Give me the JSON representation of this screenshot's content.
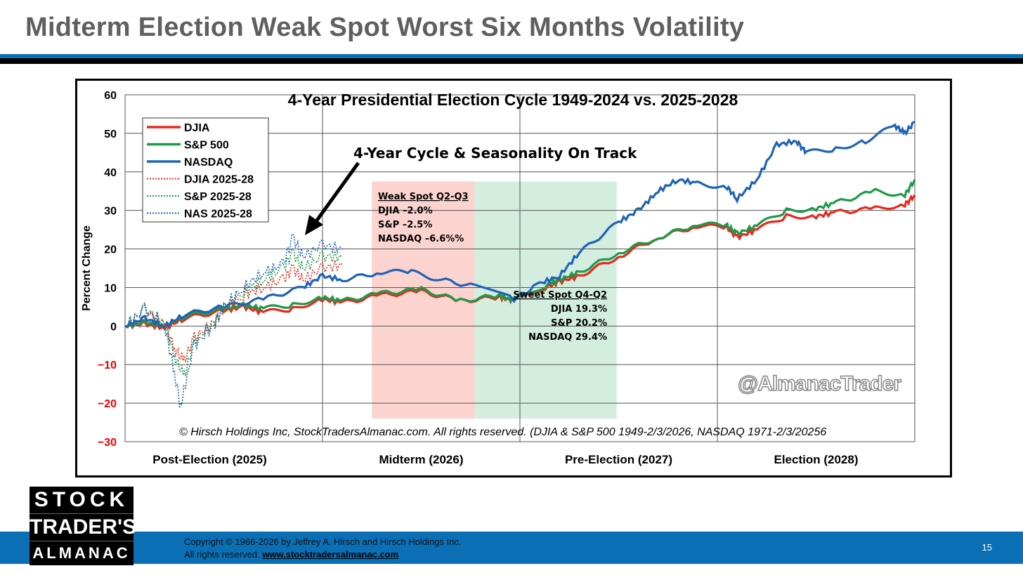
{
  "slide": {
    "title": "Midterm Election Weak Spot Worst Six Months Volatility",
    "page": "15",
    "copyright": "Copyright © 1966-2026 by Jeffrey A. Hirsch and Hirsch Holdings Inc.",
    "rights": "All rights reserved.",
    "url": "www.stocktradersalmanac.com",
    "logo": [
      "STOCK",
      "TRADER'S",
      "ALMANAC"
    ]
  },
  "chart_data": {
    "type": "line",
    "title": "4-Year Presidential Election Cycle 1949-2024 vs. 2025-2028",
    "ylabel": "Percent Change",
    "ylim": [
      -30,
      60
    ],
    "yticks": [
      "60",
      "50",
      "40",
      "30",
      "20",
      "10",
      "0",
      "−10",
      "−20",
      "−30"
    ],
    "xlim": [
      0,
      4
    ],
    "categories": [
      "Post-Election (2025)",
      "Midterm (2026)",
      "Pre-Election (2027)",
      "Election (2028)"
    ],
    "annotation": "4-Year Cycle & Seasonality On Track",
    "weak": {
      "title": "Weak Spot Q2-Q3",
      "lines": [
        "DJIA –2.0%",
        "S&P –2.5%",
        "NASDAQ –6.6%%"
      ],
      "x": [
        1.25,
        1.77
      ]
    },
    "sweet": {
      "title": "Sweet Spot Q4-Q2",
      "lines": [
        "DJIA 19.3%",
        "S&P 20.2%",
        "NASDAQ 29.4%"
      ],
      "x": [
        1.77,
        2.49
      ]
    },
    "watermark": "@AlmanacTrader",
    "source": "© Hirsch Holdings Inc, StockTradersAlmanac.com. All rights reserved. (DJIA & S&P 500 1949-2/3/2026, NASDAQ 1971-2/3/20256",
    "series": [
      {
        "name": "DJIA",
        "color": "#e8281c",
        "dotted": false,
        "x": [
          0,
          0.1,
          0.2,
          0.3,
          0.5,
          0.6,
          0.7,
          0.85,
          1,
          1.1,
          1.3,
          1.5,
          1.7,
          1.9,
          1.97,
          2.15,
          2.2,
          2.3,
          2.5,
          2.7,
          2.9,
          3.05,
          3.1,
          3.2,
          3.35,
          3.5,
          3.6,
          3.8,
          3.95,
          4
        ],
        "y": [
          0,
          0.5,
          -0.5,
          2,
          4,
          5,
          3.5,
          4.5,
          7,
          6,
          8,
          9,
          6.5,
          7.5,
          6.5,
          10.5,
          11.5,
          13,
          18,
          23,
          26,
          25.5,
          23,
          25,
          28.5,
          28.5,
          29.5,
          30.5,
          31.5,
          34
        ]
      },
      {
        "name": "S&P 500",
        "color": "#1e9a4a",
        "dotted": false,
        "x": [
          0,
          0.1,
          0.2,
          0.3,
          0.5,
          0.6,
          0.7,
          0.85,
          1,
          1.1,
          1.3,
          1.5,
          1.7,
          1.9,
          1.97,
          2.15,
          2.2,
          2.3,
          2.5,
          2.7,
          2.9,
          3.05,
          3.1,
          3.2,
          3.35,
          3.5,
          3.6,
          3.8,
          3.95,
          4
        ],
        "y": [
          0,
          1,
          0,
          2.5,
          4.5,
          5.5,
          4.5,
          5.5,
          7.5,
          6.5,
          8.5,
          9.5,
          6.5,
          8,
          6.5,
          11,
          12,
          14,
          19,
          23,
          26.5,
          26,
          24,
          26,
          30,
          30.5,
          32,
          35,
          34,
          38
        ]
      },
      {
        "name": "NASDAQ",
        "color": "#1f63b8",
        "dotted": false,
        "x": [
          0,
          0.1,
          0.2,
          0.3,
          0.5,
          0.7,
          0.9,
          1,
          1.1,
          1.3,
          1.45,
          1.6,
          1.8,
          1.97,
          2.1,
          2.2,
          2.3,
          2.5,
          2.6,
          2.7,
          2.8,
          2.9,
          3.05,
          3.1,
          3.2,
          3.3,
          3.4,
          3.45,
          3.6,
          3.75,
          3.9,
          3.95,
          4
        ],
        "y": [
          0,
          2,
          0,
          3,
          5,
          7,
          10,
          13,
          12,
          14,
          14,
          12,
          10,
          7,
          11,
          13,
          19,
          27,
          30,
          35,
          38,
          37,
          36,
          33,
          38,
          47,
          48,
          45,
          46,
          48,
          52,
          50,
          53
        ]
      },
      {
        "name": "DJIA 2025-28",
        "color": "#e8281c",
        "dotted": true,
        "x": [
          0,
          0.1,
          0.2,
          0.25,
          0.3,
          0.35,
          0.45,
          0.5,
          0.6,
          0.7,
          0.8,
          0.85,
          0.9,
          1,
          1.1
        ],
        "y": [
          0,
          4,
          1,
          -6,
          -9,
          -3,
          1,
          4,
          8,
          10,
          12,
          15,
          12,
          15,
          16
        ]
      },
      {
        "name": "S&P 2025-28",
        "color": "#1e9a4a",
        "dotted": true,
        "x": [
          0,
          0.1,
          0.2,
          0.25,
          0.3,
          0.35,
          0.45,
          0.5,
          0.6,
          0.7,
          0.8,
          0.85,
          0.9,
          1,
          1.1
        ],
        "y": [
          0,
          4.5,
          1,
          -8,
          -13,
          -4,
          1,
          5,
          9,
          12,
          15,
          19,
          15,
          18,
          18
        ]
      },
      {
        "name": "NAS 2025-28",
        "color": "#1f63b8",
        "dotted": true,
        "x": [
          0,
          0.1,
          0.2,
          0.25,
          0.28,
          0.35,
          0.45,
          0.5,
          0.6,
          0.7,
          0.8,
          0.85,
          0.9,
          1,
          1.1
        ],
        "y": [
          0,
          4,
          0,
          -12,
          -21,
          -5,
          0,
          5,
          10,
          14,
          16,
          23,
          18,
          21,
          20
        ]
      }
    ]
  }
}
